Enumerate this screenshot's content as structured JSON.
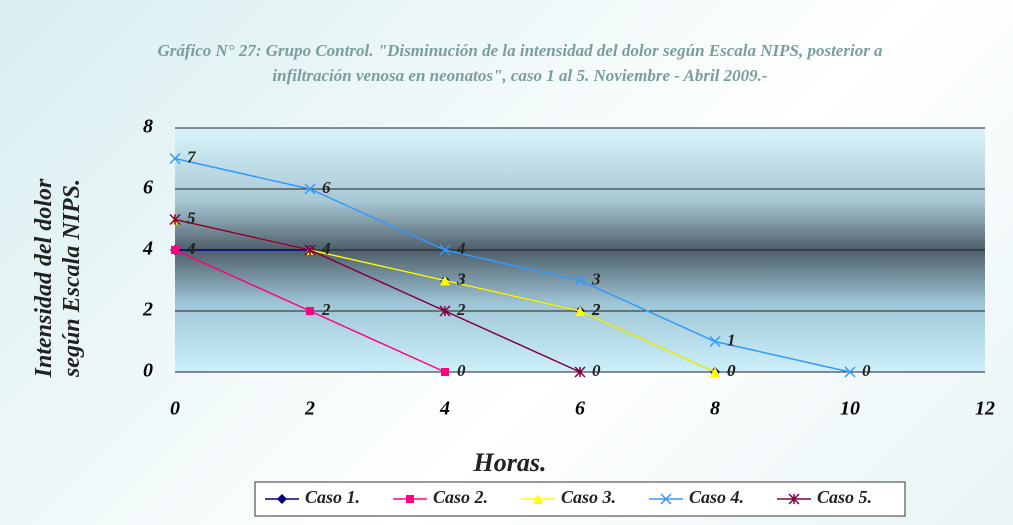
{
  "chart_data": {
    "type": "line",
    "title": "Gráfico N° 27: Grupo Control. \"Disminución de la intensidad del dolor según Escala NIPS, posterior a infiltración venosa en neonatos\", caso 1 al 5. Noviembre - Abril 2009.-",
    "xlabel": "Horas.",
    "ylabel": "Intensidad del dolor según Escala NIPS.",
    "x": [
      0,
      2,
      4,
      6,
      8,
      10
    ],
    "series": [
      {
        "name": "Caso 1.",
        "color": "#000080",
        "marker": "diamond",
        "values": [
          4,
          4,
          3,
          2,
          0,
          null
        ]
      },
      {
        "name": "Caso 2.",
        "color": "#ff0080",
        "marker": "square",
        "values": [
          4,
          2,
          0,
          null,
          null,
          null
        ]
      },
      {
        "name": "Caso 3.",
        "color": "#ffff00",
        "marker": "triangle",
        "values": [
          5,
          4,
          3,
          2,
          0,
          null
        ]
      },
      {
        "name": "Caso 4.",
        "color": "#3399ff",
        "marker": "x",
        "values": [
          7,
          6,
          4,
          3,
          1,
          0
        ]
      },
      {
        "name": "Caso 5.",
        "color": "#800040",
        "marker": "star",
        "values": [
          5,
          4,
          2,
          0,
          null,
          null
        ]
      }
    ],
    "xlim": [
      0,
      12
    ],
    "xticks": [
      0,
      2,
      4,
      6,
      8,
      10,
      12
    ],
    "ylim": [
      0,
      8
    ],
    "yticks": [
      0,
      2,
      4,
      6,
      8
    ],
    "grid": true,
    "legend": "bottom"
  }
}
